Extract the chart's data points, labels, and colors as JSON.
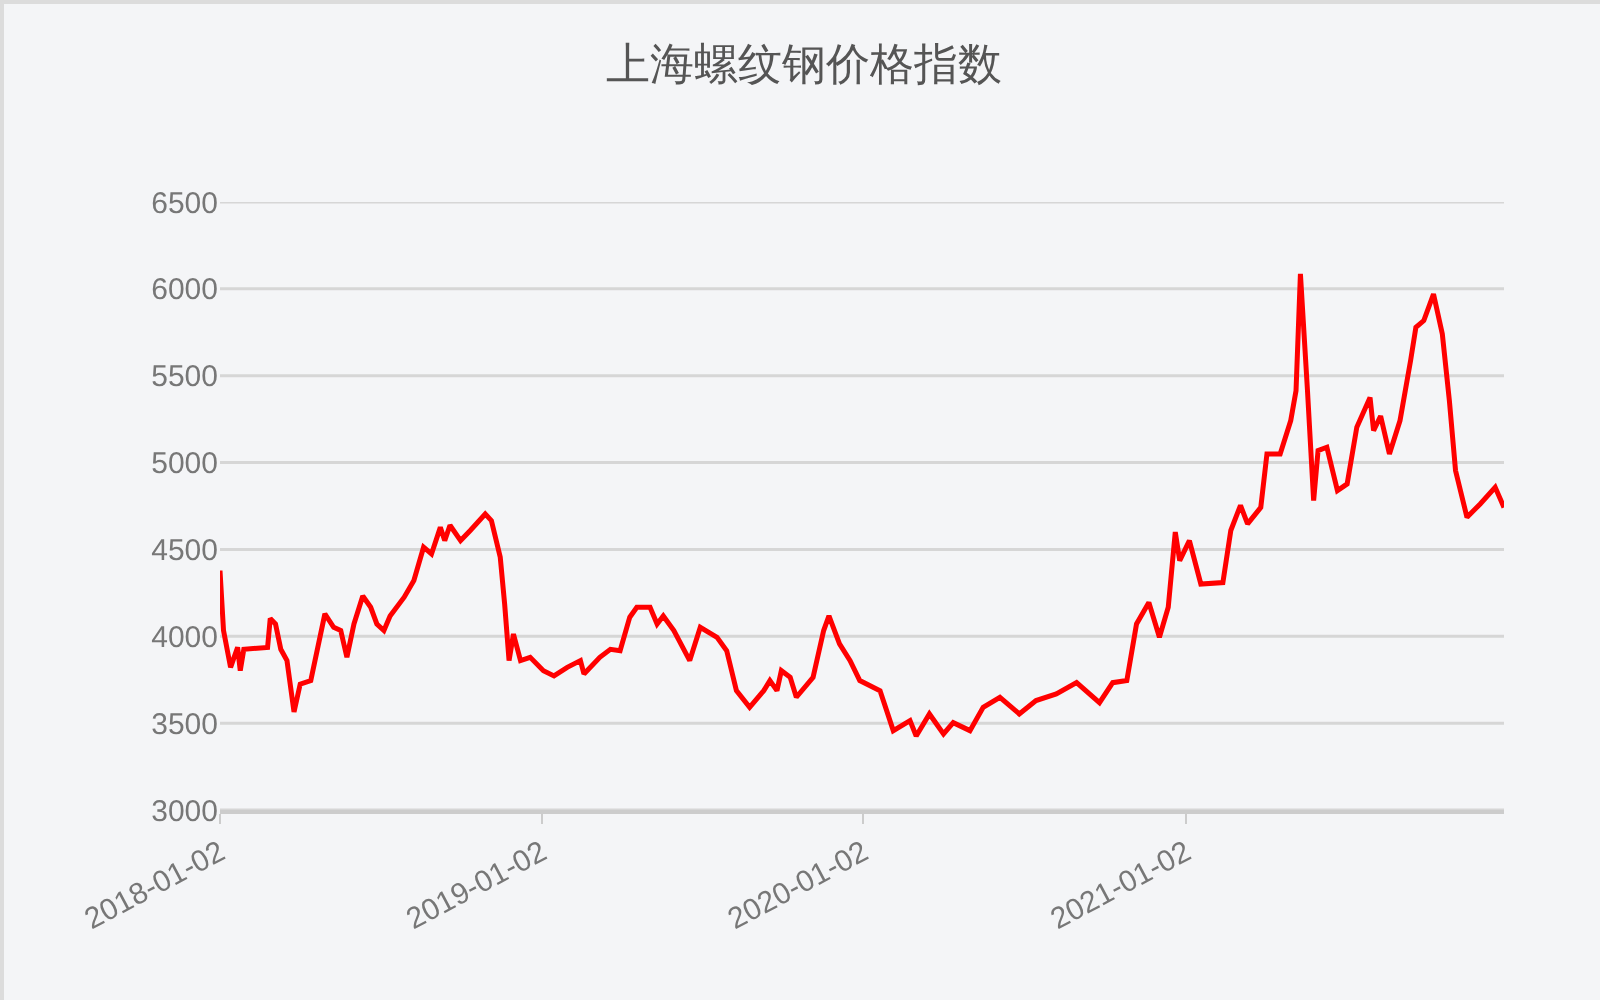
{
  "chart_data": {
    "type": "line",
    "title": "上海螺纹钢价格指数",
    "x": [
      "2018-01-02",
      "2018-01-06",
      "2018-01-14",
      "2018-01-22",
      "2018-01-25",
      "2018-01-29",
      "2018-02-25",
      "2018-02-28",
      "2018-03-06",
      "2018-03-12",
      "2018-03-19",
      "2018-03-27",
      "2018-04-03",
      "2018-04-15",
      "2018-05-01",
      "2018-05-11",
      "2018-05-19",
      "2018-05-26",
      "2018-06-03",
      "2018-06-13",
      "2018-06-22",
      "2018-06-29",
      "2018-07-07",
      "2018-07-14",
      "2018-07-30",
      "2018-08-10",
      "2018-08-21",
      "2018-08-30",
      "2018-09-09",
      "2018-09-14",
      "2018-09-20",
      "2018-10-02",
      "2018-10-13",
      "2018-10-30",
      "2018-11-06",
      "2018-11-16",
      "2018-11-21",
      "2018-11-26",
      "2018-12-01",
      "2018-12-09",
      "2018-12-20",
      "2019-01-04",
      "2019-01-16",
      "2019-01-31",
      "2019-02-15",
      "2019-02-19",
      "2019-03-09",
      "2019-03-21",
      "2019-04-01",
      "2019-04-12",
      "2019-04-20",
      "2019-05-05",
      "2019-05-13",
      "2019-05-20",
      "2019-06-01",
      "2019-06-19",
      "2019-07-01",
      "2019-07-20",
      "2019-07-31",
      "2019-08-11",
      "2019-08-26",
      "2019-09-11",
      "2019-09-18",
      "2019-09-26",
      "2019-10-01",
      "2019-10-11",
      "2019-10-18",
      "2019-11-06",
      "2019-11-18",
      "2019-11-24",
      "2019-12-06",
      "2019-12-18",
      "2019-12-29",
      "2020-01-21",
      "2020-02-05",
      "2020-02-24",
      "2020-03-02",
      "2020-03-17",
      "2020-04-02",
      "2020-04-13",
      "2020-05-02",
      "2020-05-17",
      "2020-06-05",
      "2020-06-27",
      "2020-07-16",
      "2020-08-08",
      "2020-08-31",
      "2020-09-26",
      "2020-10-11",
      "2020-10-27",
      "2020-11-07",
      "2020-11-21",
      "2020-12-03",
      "2020-12-13",
      "2020-12-21",
      "2020-12-26",
      "2021-01-06",
      "2021-01-19",
      "2021-02-13",
      "2021-02-22",
      "2021-03-05",
      "2021-03-13",
      "2021-03-28",
      "2021-04-04",
      "2021-04-19",
      "2021-05-01",
      "2021-05-07",
      "2021-05-12",
      "2021-05-20",
      "2021-05-27",
      "2021-06-01",
      "2021-06-11",
      "2021-06-23",
      "2021-07-04",
      "2021-07-15",
      "2021-07-30",
      "2021-08-03",
      "2021-08-11",
      "2021-08-21",
      "2021-09-02",
      "2021-09-14",
      "2021-09-20",
      "2021-09-29",
      "2021-10-10",
      "2021-10-20",
      "2021-10-28",
      "2021-11-04",
      "2021-11-17",
      "2021-12-02",
      "2021-12-19",
      "2021-12-29"
    ],
    "series": [
      {
        "color": "#ff0000",
        "values": [
          4378,
          4033,
          3821,
          3936,
          3802,
          3925,
          3936,
          4102,
          4071,
          3925,
          3860,
          3564,
          3725,
          3745,
          4129,
          4052,
          4033,
          3879,
          4071,
          4232,
          4167,
          4071,
          4033,
          4117,
          4225,
          4321,
          4513,
          4474,
          4627,
          4551,
          4639,
          4551,
          4609,
          4704,
          4666,
          4455,
          4186,
          3860,
          4013,
          3860,
          3879,
          3802,
          3772,
          3821,
          3860,
          3783,
          3879,
          3925,
          3917,
          4110,
          4167,
          4167,
          4071,
          4117,
          4033,
          3860,
          4052,
          3994,
          3917,
          3687,
          3591,
          3687,
          3745,
          3687,
          3802,
          3764,
          3649,
          3764,
          4033,
          4117,
          3956,
          3860,
          3745,
          3687,
          3457,
          3515,
          3426,
          3553,
          3438,
          3503,
          3457,
          3591,
          3649,
          3553,
          3630,
          3668,
          3733,
          3618,
          3733,
          3745,
          4071,
          4194,
          3994,
          4167,
          4600,
          4436,
          4551,
          4301,
          4309,
          4609,
          4754,
          4647,
          4742,
          5049,
          5049,
          5242,
          5414,
          6086,
          5414,
          4781,
          5069,
          5088,
          4839,
          4877,
          5204,
          5375,
          5184,
          5268,
          5049,
          5242,
          5587,
          5778,
          5817,
          5970,
          5740,
          5357,
          4954,
          4685,
          4762,
          4858,
          4742
        ]
      }
    ],
    "xlim": [
      "2018-01-02",
      "2021-12-29"
    ],
    "xticks": [
      "2018-01-02",
      "2019-01-02",
      "2020-01-02",
      "2021-01-02"
    ],
    "ylim": [
      3000,
      6500
    ],
    "yticks": [
      3000,
      3500,
      4000,
      4500,
      5000,
      5500,
      6000,
      6500
    ],
    "grid": "y",
    "marker": "none",
    "line_style": "solid"
  }
}
